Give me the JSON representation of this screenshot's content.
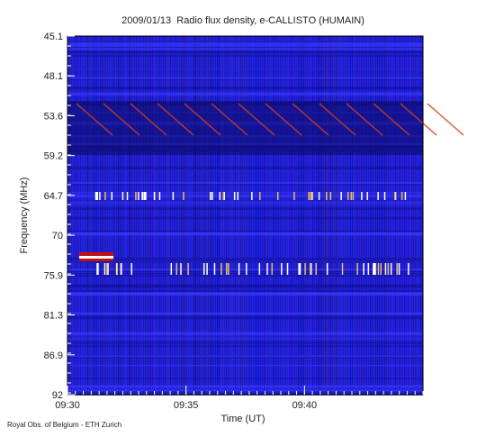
{
  "chart_data": {
    "type": "spectrogram",
    "title": "2009/01/13  Radio flux density, e-CALLISTO (HUMAIN)",
    "y_label": "Frequency (MHz)",
    "x_label": "Time (UT)",
    "footer": "Royal Obs. of Belgium - ETH Zurich",
    "ylim": [
      45.1,
      92.0
    ],
    "yticks": [
      45.1,
      48.1,
      53.6,
      59.2,
      64.7,
      70.0,
      75.9,
      81.3,
      86.9,
      92.0
    ],
    "xlim": [
      "09:30",
      "09:45"
    ],
    "xticks": [
      "09:30",
      "09:35",
      "09:40"
    ]
  }
}
